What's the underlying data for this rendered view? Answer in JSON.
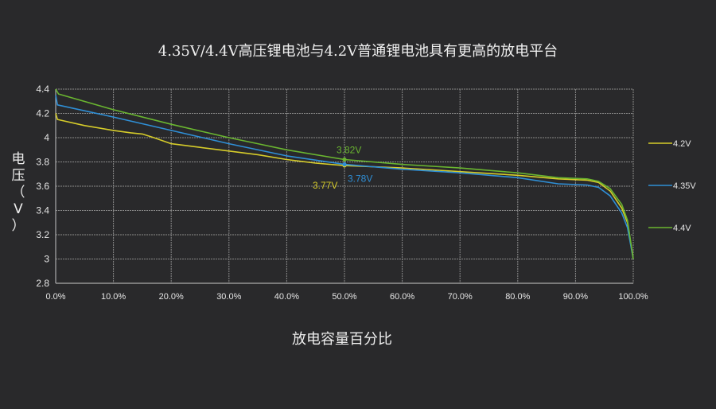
{
  "chart_data": {
    "type": "line",
    "title": "4.35V/4.4V高压锂电池与4.2V普通锂电池具有更高的放电平台",
    "xlabel": "放电容量百分比",
    "ylabel": "电压（V）",
    "xlim": [
      0,
      100
    ],
    "ylim": [
      2.8,
      4.4
    ],
    "xticks": [
      "0.0%",
      "10.0%",
      "20.0%",
      "30.0%",
      "40.0%",
      "50.0%",
      "60.0%",
      "70.0%",
      "80.0%",
      "90.0%",
      "100.0%"
    ],
    "yticks": [
      "2.8",
      "3",
      "3.2",
      "3.4",
      "3.6",
      "3.8",
      "4",
      "4.2",
      "4.4"
    ],
    "grid": true,
    "legend_position": "right",
    "series": [
      {
        "name": "4.2V",
        "color": "#d6cc2a",
        "x": [
          0,
          0.3,
          5,
          10,
          13,
          15,
          17,
          20,
          25,
          30,
          35,
          40,
          45,
          50,
          60,
          70,
          80,
          87,
          92,
          94,
          96,
          98,
          99,
          100
        ],
        "y": [
          4.2,
          4.15,
          4.1,
          4.06,
          4.04,
          4.03,
          4.0,
          3.95,
          3.92,
          3.89,
          3.86,
          3.82,
          3.79,
          3.77,
          3.75,
          3.72,
          3.69,
          3.66,
          3.65,
          3.63,
          3.56,
          3.42,
          3.3,
          3.0
        ],
        "annotation": {
          "x": 50,
          "y": 3.77,
          "label": "3.77V"
        }
      },
      {
        "name": "4.35V",
        "color": "#2f8fd6",
        "x": [
          0,
          0.3,
          10,
          20,
          30,
          40,
          50,
          60,
          70,
          80,
          87,
          92,
          94,
          96,
          98,
          99,
          100
        ],
        "y": [
          4.35,
          4.27,
          4.17,
          4.06,
          3.95,
          3.85,
          3.78,
          3.74,
          3.71,
          3.67,
          3.62,
          3.61,
          3.59,
          3.52,
          3.38,
          3.26,
          3.0
        ],
        "annotation": {
          "x": 50,
          "y": 3.78,
          "label": "3.78V"
        }
      },
      {
        "name": "4.4V",
        "color": "#6ab630",
        "x": [
          0,
          0.5,
          10,
          20,
          30,
          35,
          40,
          50,
          60,
          70,
          80,
          87,
          92,
          94,
          96,
          98,
          99,
          100
        ],
        "y": [
          4.4,
          4.36,
          4.23,
          4.11,
          4.0,
          3.95,
          3.9,
          3.82,
          3.78,
          3.75,
          3.71,
          3.67,
          3.66,
          3.64,
          3.58,
          3.45,
          3.32,
          3.0
        ],
        "annotation": {
          "x": 50,
          "y": 3.82,
          "label": "3.82V"
        }
      }
    ]
  }
}
